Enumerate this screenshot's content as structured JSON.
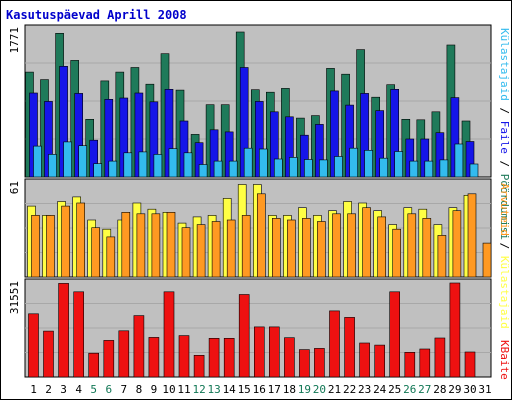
{
  "chart_data": [
    {
      "type": "bar",
      "title": "Kasutuspäevad Aprill 2008",
      "panel": "top",
      "ylabel_max": "1771",
      "ylim": [
        0,
        1771
      ],
      "categories": [
        "1",
        "2",
        "3",
        "4",
        "5",
        "6",
        "7",
        "8",
        "9",
        "10",
        "11",
        "12",
        "13",
        "14",
        "15",
        "16",
        "17",
        "18",
        "19",
        "20",
        "21",
        "22",
        "23",
        "24",
        "25",
        "26",
        "27",
        "28",
        "29",
        "30",
        "31"
      ],
      "series": [
        {
          "name": "Pöördumisi",
          "color": "#1f7a5a",
          "values": [
            1255,
            1165,
            1720,
            1395,
            690,
            1150,
            1255,
            1310,
            1110,
            1475,
            1040,
            510,
            865,
            865,
            1735,
            1045,
            1015,
            1060,
            705,
            735,
            1300,
            1230,
            1525,
            955,
            1105,
            690,
            685,
            780,
            1580,
            670,
            0
          ]
        },
        {
          "name": "Faile",
          "color": "#1515e8",
          "values": [
            1005,
            905,
            1325,
            1000,
            440,
            930,
            945,
            1005,
            900,
            1050,
            670,
            410,
            565,
            540,
            1310,
            905,
            780,
            720,
            500,
            630,
            1030,
            860,
            1000,
            795,
            1050,
            455,
            455,
            530,
            950,
            425,
            0
          ]
        },
        {
          "name": "Külastajaid",
          "color": "#33bbee",
          "values": [
            370,
            270,
            420,
            375,
            160,
            190,
            290,
            300,
            270,
            340,
            290,
            150,
            190,
            190,
            345,
            335,
            215,
            235,
            210,
            205,
            245,
            345,
            320,
            225,
            305,
            190,
            190,
            205,
            395,
            155,
            0
          ]
        }
      ]
    },
    {
      "type": "bar",
      "panel": "middle",
      "ylabel_max": "61",
      "ylim": [
        0,
        61
      ],
      "categories": [
        "1",
        "2",
        "3",
        "4",
        "5",
        "6",
        "7",
        "8",
        "9",
        "10",
        "11",
        "12",
        "13",
        "14",
        "15",
        "16",
        "17",
        "18",
        "19",
        "20",
        "21",
        "22",
        "23",
        "24",
        "25",
        "26",
        "27",
        "28",
        "29",
        "30",
        "31"
      ],
      "series": [
        {
          "name": "Külastajaid",
          "color": "#ffff44",
          "values": [
            46,
            40,
            49,
            52,
            37,
            31,
            37,
            48,
            44,
            42,
            35,
            39,
            40,
            51,
            60,
            60,
            40,
            40,
            45,
            40,
            43,
            49,
            48,
            43,
            34,
            45,
            44,
            34,
            45,
            53,
            0
          ]
        },
        {
          "name": "Arvuteid",
          "color": "#ff9922",
          "values": [
            40,
            40,
            46,
            48,
            32,
            26,
            42,
            41,
            41,
            42,
            32,
            34,
            36,
            37,
            40,
            54,
            38,
            37,
            38,
            36,
            41,
            41,
            45,
            39,
            31,
            41,
            38,
            27,
            43,
            54,
            22
          ]
        }
      ]
    },
    {
      "type": "bar",
      "panel": "bottom",
      "ylabel_max": "31551",
      "ylim": [
        0,
        31551
      ],
      "categories": [
        "1",
        "2",
        "3",
        "4",
        "5",
        "6",
        "7",
        "8",
        "9",
        "10",
        "11",
        "12",
        "13",
        "14",
        "15",
        "16",
        "17",
        "18",
        "19",
        "20",
        "21",
        "22",
        "23",
        "24",
        "25",
        "26",
        "27",
        "28",
        "29",
        "30",
        "31"
      ],
      "series": [
        {
          "name": "KBaite",
          "color": "#ee1111",
          "values": [
            21200,
            15400,
            31400,
            28600,
            8000,
            12300,
            15500,
            20600,
            13300,
            28600,
            13900,
            7300,
            13000,
            13000,
            27700,
            16800,
            16800,
            13200,
            9200,
            9600,
            22200,
            20000,
            11400,
            10700,
            28600,
            8300,
            9400,
            13100,
            31551,
            8400,
            0
          ]
        }
      ]
    }
  ],
  "x_axis": {
    "labels": [
      "1",
      "2",
      "3",
      "4",
      "5",
      "6",
      "7",
      "8",
      "9",
      "10",
      "11",
      "12",
      "13",
      "14",
      "15",
      "16",
      "17",
      "18",
      "19",
      "20",
      "21",
      "22",
      "23",
      "24",
      "25",
      "26",
      "27",
      "28",
      "29",
      "30",
      "31"
    ],
    "weekend_days": [
      "5",
      "6",
      "12",
      "13",
      "19",
      "20",
      "26",
      "27"
    ],
    "weekday_color": "#000000",
    "weekend_color": "#117755"
  },
  "colors": {
    "plot_bg": "#c0c0c0",
    "border": "#000000",
    "title": "#0000cc",
    "label_separator": "#000000"
  }
}
